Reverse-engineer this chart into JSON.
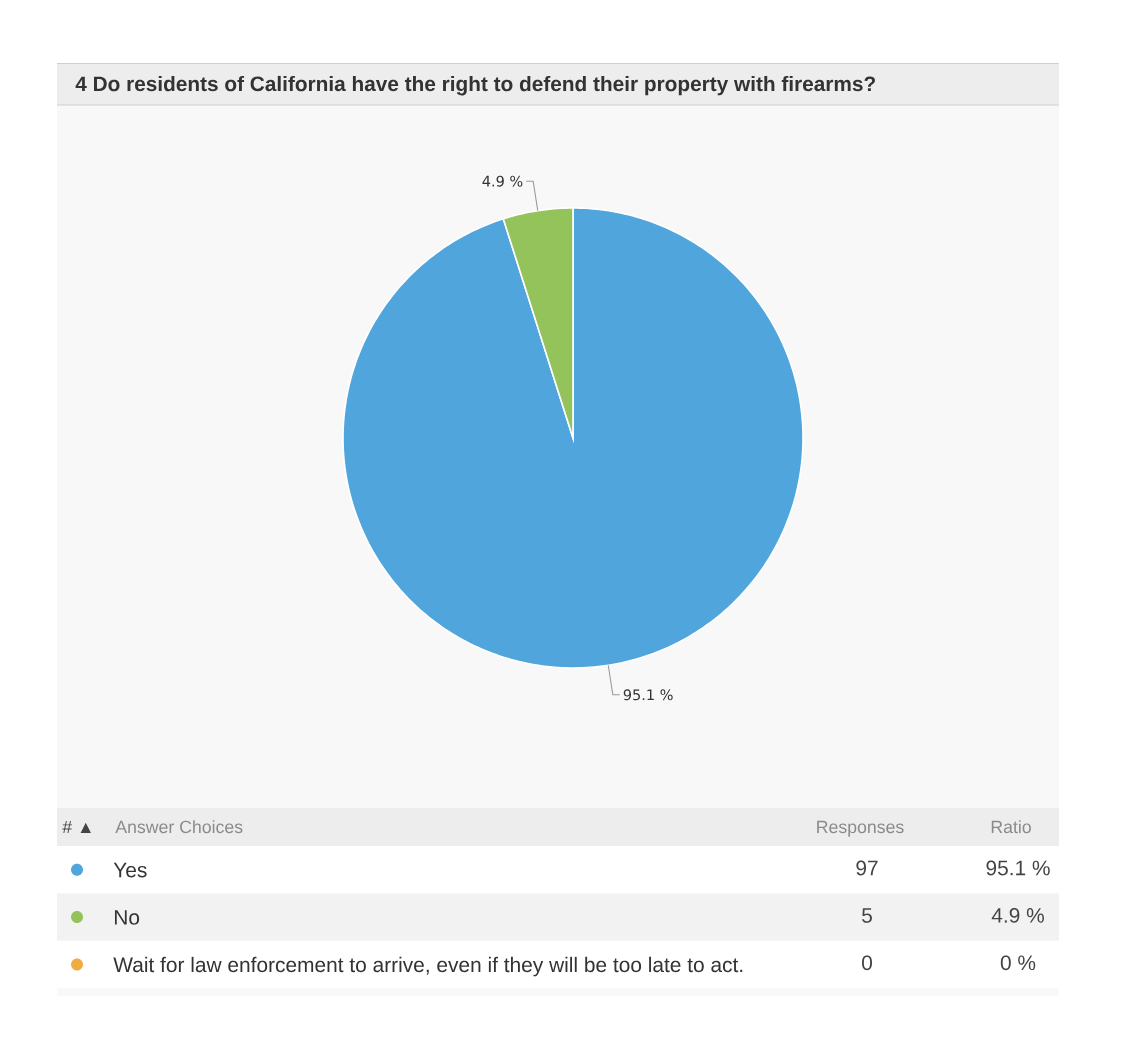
{
  "chart_data": {
    "type": "pie",
    "title": "4 Do residents of California have the right to defend their property with firearms?",
    "categories": [
      "Yes",
      "No",
      "Wait for law enforcement to arrive, even if they will be too late to act."
    ],
    "values": [
      95.1,
      4.9,
      0
    ],
    "colors": [
      "#50a5dc",
      "#93c35a",
      "#f0ac42"
    ],
    "value_labels": [
      "95.1 %",
      "4.9 %",
      "0 %"
    ],
    "legend": "bottom",
    "annotations": [
      "# ▲",
      "Answer Choices",
      "Responses",
      "Ratio",
      "97",
      "5",
      "0"
    ]
  }
}
